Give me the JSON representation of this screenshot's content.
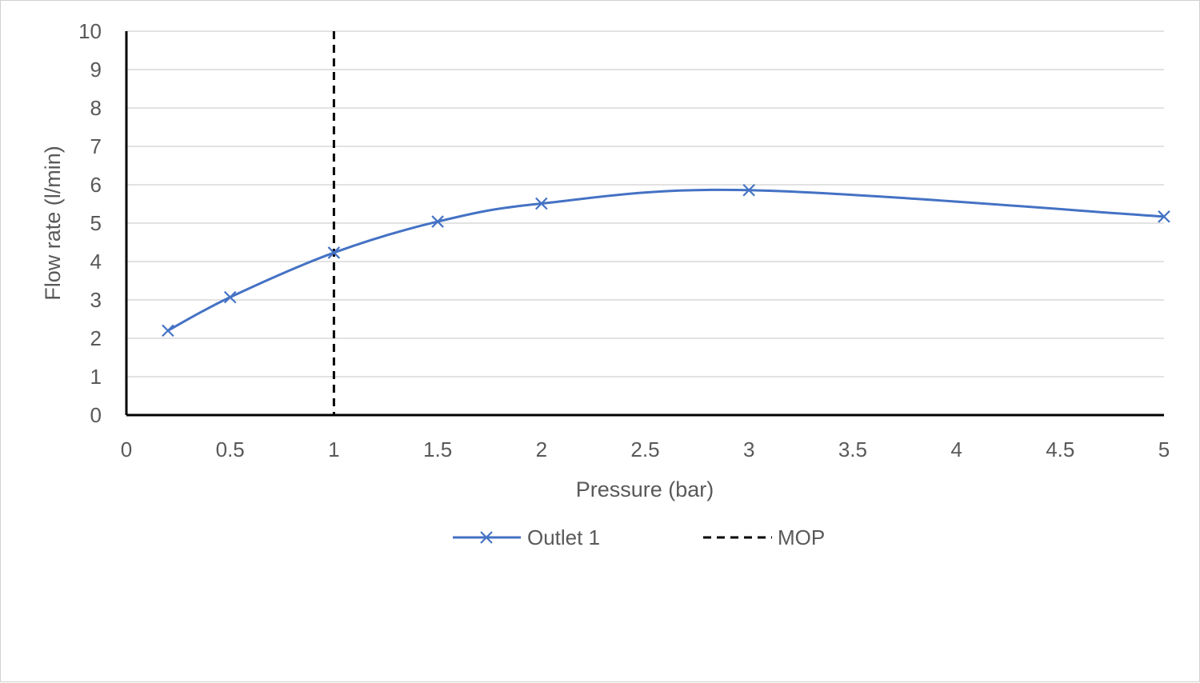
{
  "chart_data": {
    "type": "line",
    "xlabel": "Pressure (bar)",
    "ylabel": "Flow rate (l/min)",
    "xlim": [
      0,
      5
    ],
    "ylim": [
      0,
      10
    ],
    "x_ticks": [
      0,
      0.5,
      1,
      1.5,
      2,
      2.5,
      3,
      3.5,
      4,
      4.5,
      5
    ],
    "x_tick_labels": [
      "0",
      "0.5",
      "1",
      "1.5",
      "2",
      "2.5",
      "3",
      "3.5",
      "4",
      "4.5",
      "5"
    ],
    "y_ticks": [
      0,
      1,
      2,
      3,
      4,
      5,
      6,
      7,
      8,
      9,
      10
    ],
    "y_tick_labels": [
      "0",
      "1",
      "2",
      "3",
      "4",
      "5",
      "6",
      "7",
      "8",
      "9",
      "10"
    ],
    "grid": "horizontal",
    "legend_position": "bottom",
    "series": [
      {
        "name": "Outlet 1",
        "marker": "x",
        "line": "smooth",
        "color": "#4472C4",
        "x": [
          0.2,
          0.5,
          1,
          1.5,
          2,
          3,
          5
        ],
        "y": [
          2.2,
          3.07,
          4.23,
          5.04,
          5.51,
          5.86,
          5.17
        ]
      }
    ],
    "reference_lines": [
      {
        "name": "MOP",
        "orientation": "vertical",
        "x": 1,
        "style": "dashed",
        "color": "#000000"
      }
    ]
  }
}
